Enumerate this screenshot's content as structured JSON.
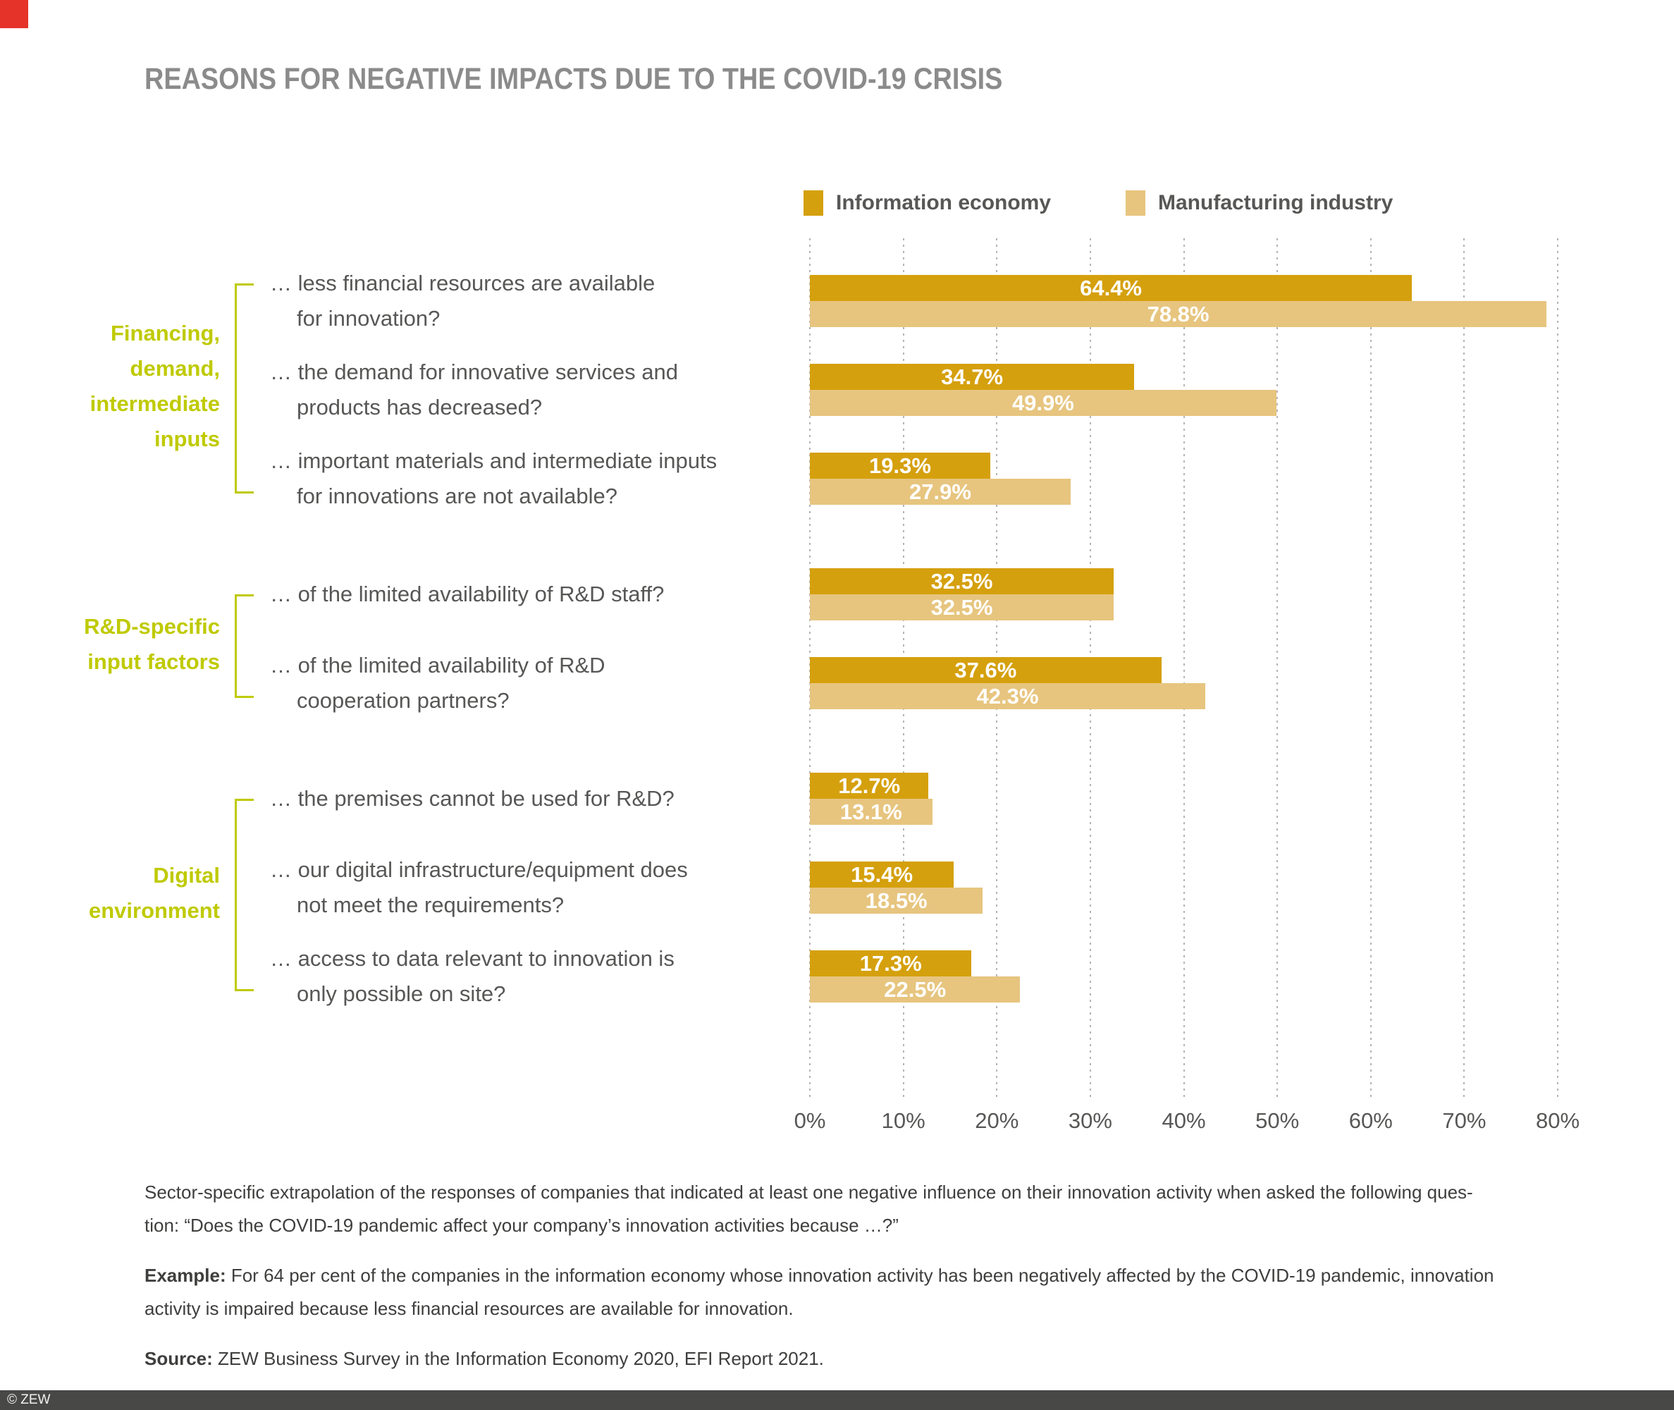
{
  "title": "REASONS FOR NEGATIVE IMPACTS DUE TO THE COVID-19 CRISIS",
  "legend": {
    "items": [
      {
        "label": "Information economy",
        "color": "#d5a00d"
      },
      {
        "label": "Manufacturing industry",
        "color": "#e7c57f"
      }
    ]
  },
  "chart_data": {
    "type": "bar",
    "orientation": "horizontal",
    "unit": "%",
    "xlim": [
      0,
      80
    ],
    "x_ticks": [
      "0%",
      "10%",
      "20%",
      "30%",
      "40%",
      "50%",
      "60%",
      "70%",
      "80%"
    ],
    "grid": "dotted-vertical",
    "legend_position": "top",
    "series_names": [
      "Information economy",
      "Manufacturing industry"
    ],
    "groups": [
      {
        "label_lines": [
          "Financing,",
          "demand,",
          "intermediate",
          "inputs"
        ],
        "rows": [
          0,
          1,
          2
        ]
      },
      {
        "label_lines": [
          "R&D-specific",
          "input factors"
        ],
        "rows": [
          3,
          4
        ]
      },
      {
        "label_lines": [
          "Digital",
          "environment"
        ],
        "rows": [
          5,
          6,
          7
        ]
      }
    ],
    "rows": [
      {
        "label_lines": [
          "… less financial resources are available",
          "for innovation?"
        ],
        "values": [
          64.4,
          78.8
        ]
      },
      {
        "label_lines": [
          "… the demand for innovative services and",
          "products has decreased?"
        ],
        "values": [
          34.7,
          49.9
        ]
      },
      {
        "label_lines": [
          "… important materials and intermediate inputs",
          "for innovations are not available?"
        ],
        "values": [
          19.3,
          27.9
        ]
      },
      {
        "label_lines": [
          "… of the limited availability of R&D staff?"
        ],
        "values": [
          32.5,
          32.5
        ]
      },
      {
        "label_lines": [
          "… of the limited availability of R&D",
          "cooperation partners?"
        ],
        "values": [
          37.6,
          42.3
        ]
      },
      {
        "label_lines": [
          "… the premises cannot be used for R&D?"
        ],
        "values": [
          12.7,
          13.1
        ]
      },
      {
        "label_lines": [
          "… our digital infrastructure/equipment does",
          "not meet the requirements?"
        ],
        "values": [
          15.4,
          18.5
        ]
      },
      {
        "label_lines": [
          "… access to data relevant to innovation is",
          "only possible on site?"
        ],
        "values": [
          17.3,
          22.5
        ]
      }
    ]
  },
  "colors": {
    "bar_information_economy": "#d5a00d",
    "bar_manufacturing_industry": "#e7c57f",
    "group_label_green": "#bfca00",
    "title_gray": "#8b8b8b",
    "body_text": "#575756",
    "footnote_text": "#3e3e3d",
    "gridline": "#b4b4b4",
    "footer_bar": "#484847",
    "corner_marker_red": "#e63329",
    "value_text": "#ffffff"
  },
  "footnotes": {
    "method_lines": [
      "Sector-specific extrapolation of the responses of companies that indicated at least one negative influence on their innovation activity when asked the following ques-",
      "tion: “Does the COVID-19 pandemic affect your company’s innovation activities because …?”"
    ],
    "example_label": "Example:",
    "example_lines": [
      "For 64 per cent of the companies in the information economy whose innovation activity has been negatively affected by the COVID-19 pandemic, innovation",
      "activity is impaired because less financial resources are available for innovation."
    ],
    "source_label": "Source:",
    "source_text": "ZEW Business Survey in the Information Economy 2020, EFI Report 2021."
  },
  "copyright": "© ZEW"
}
